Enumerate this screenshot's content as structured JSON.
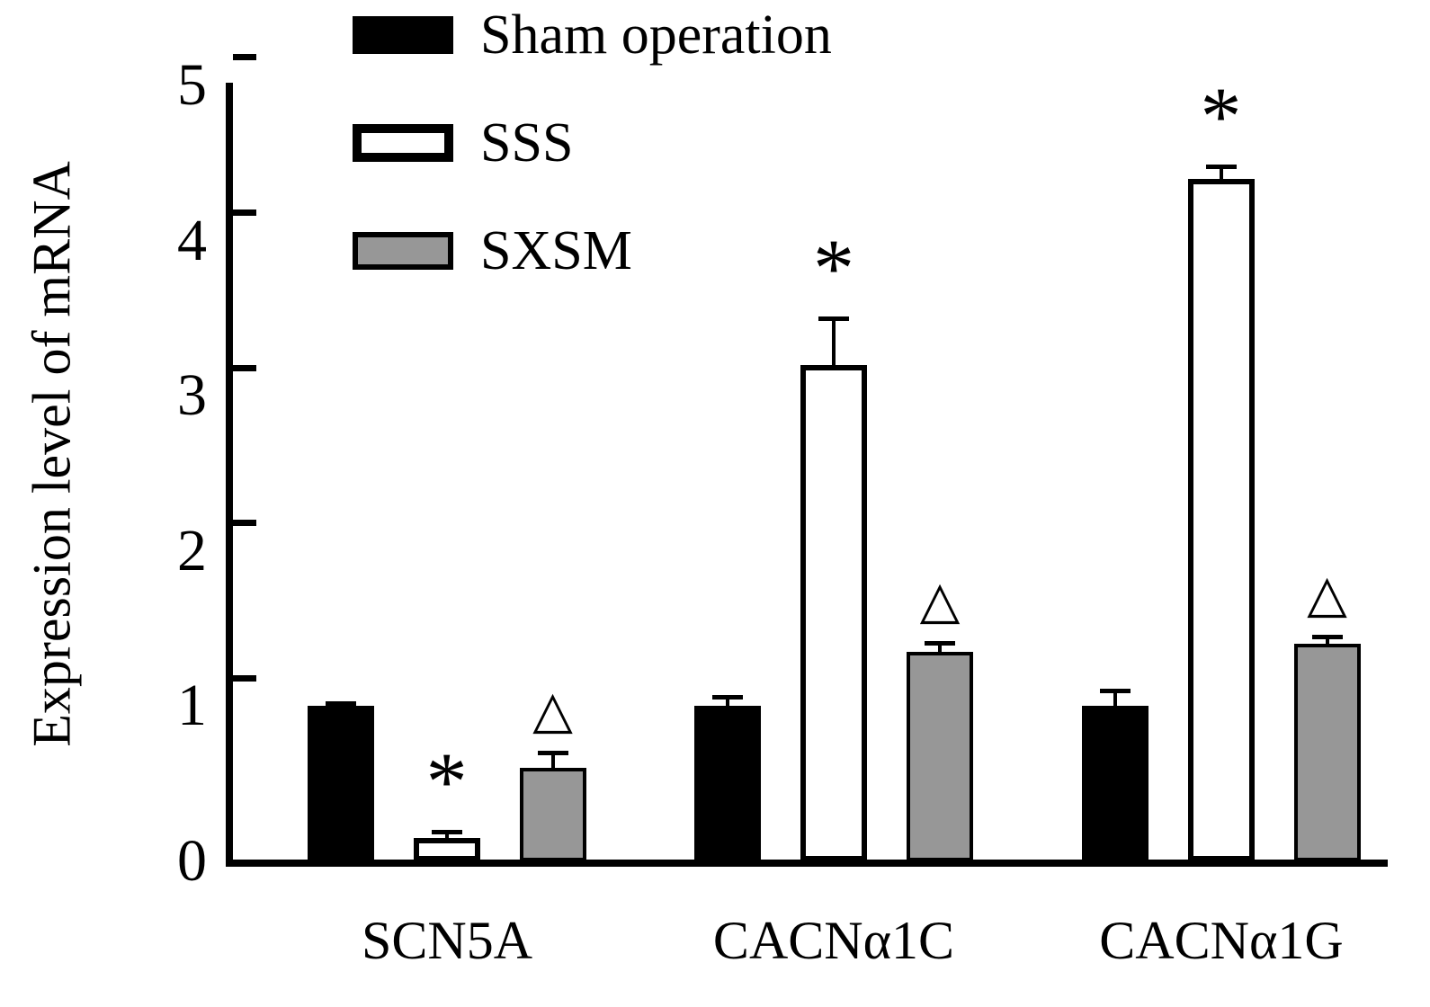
{
  "chart_data": {
    "type": "bar",
    "title": "",
    "xlabel": "",
    "ylabel": "Expression level of mRNA",
    "ylim": [
      0,
      5
    ],
    "yticks": [
      0,
      1,
      2,
      3,
      4,
      5
    ],
    "grid": false,
    "legend_position": "top-left",
    "categories": [
      "SCN5A",
      "CACNα1C",
      "CACNα1G"
    ],
    "series": [
      {
        "name": "Sham operation",
        "color": "#000000",
        "values": [
          1.0,
          1.0,
          1.0
        ],
        "errors": [
          0.02,
          0.06,
          0.1
        ],
        "annotations": [
          "",
          "",
          ""
        ]
      },
      {
        "name": "SSS",
        "color": "#ffffff",
        "values": [
          0.15,
          3.2,
          4.4
        ],
        "errors": [
          0.04,
          0.3,
          0.08
        ],
        "annotations": [
          "*",
          "*",
          "*"
        ]
      },
      {
        "name": "SXSM",
        "color": "#979797",
        "values": [
          0.6,
          1.35,
          1.4
        ],
        "errors": [
          0.1,
          0.06,
          0.05
        ],
        "annotations": [
          "△",
          "△",
          "△"
        ]
      }
    ]
  }
}
